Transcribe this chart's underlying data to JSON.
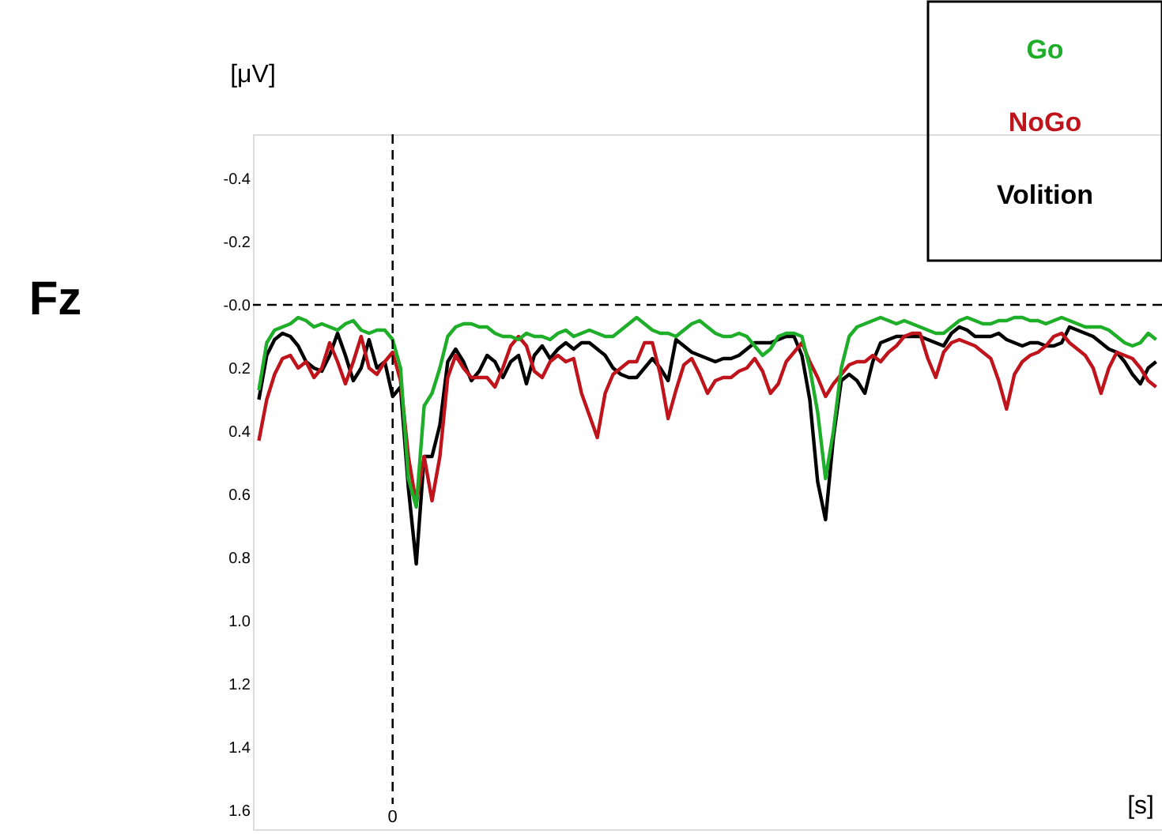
{
  "chart_data": {
    "type": "line",
    "xlabel": "[s]",
    "ylabel": "[μV]",
    "annotations": [
      "Fz"
    ],
    "legend": "top right",
    "grid": false,
    "marker": "none",
    "line_style": "solid",
    "categories": [
      null,
      null,
      null,
      null,
      null,
      null,
      null,
      null,
      null,
      null,
      null,
      null,
      null,
      null,
      null,
      null,
      null,
      "0",
      null,
      null,
      null,
      null,
      null,
      null,
      null,
      null,
      null,
      null,
      null,
      null,
      null,
      null,
      null,
      null,
      null,
      null,
      null,
      null,
      null,
      null,
      null,
      null,
      null,
      null,
      null,
      null,
      null,
      null,
      null,
      null,
      null,
      null,
      null,
      null,
      null,
      null,
      null,
      null,
      null,
      null,
      null,
      null,
      null,
      null,
      null,
      null,
      null,
      null,
      null,
      null,
      null,
      null,
      null,
      null,
      null,
      null,
      null,
      null,
      null,
      null,
      null,
      null,
      null,
      null,
      null,
      null,
      null,
      null,
      null,
      null,
      null,
      null,
      null,
      null,
      null,
      null,
      null,
      null,
      null,
      null,
      null,
      null,
      null,
      null,
      null,
      null,
      null,
      null,
      null,
      null,
      null,
      null,
      null,
      null,
      null
    ],
    "ylim": [
      1.66,
      -0.54
    ],
    "yticks": [
      -0.4,
      -0.2,
      {
        "value": 0,
        "label": "-0.0"
      },
      0.2,
      0.4,
      0.6,
      0.8,
      {
        "value": 1,
        "label": "1.0"
      },
      1.2,
      1.4,
      1.6
    ],
    "ref_lines": [
      {
        "axis": "y",
        "value": 0,
        "line_style": "dashed",
        "color": "#000000"
      },
      {
        "axis": "x",
        "value": "0",
        "line_style": "dashed",
        "color": "#000000"
      }
    ],
    "series": [
      {
        "name": "Go",
        "color": "#1fae2a",
        "values": [
          0.27,
          0.12,
          0.08,
          0.07,
          0.06,
          0.04,
          0.05,
          0.07,
          0.06,
          0.07,
          0.08,
          0.06,
          0.05,
          0.08,
          0.09,
          0.08,
          0.08,
          0.11,
          0.2,
          0.55,
          0.64,
          0.32,
          0.28,
          0.2,
          0.1,
          0.07,
          0.06,
          0.06,
          0.07,
          0.07,
          0.09,
          0.1,
          0.1,
          0.11,
          0.09,
          0.1,
          0.1,
          0.11,
          0.09,
          0.08,
          0.1,
          0.09,
          0.08,
          0.09,
          0.1,
          0.1,
          0.08,
          0.06,
          0.04,
          0.06,
          0.08,
          0.09,
          0.09,
          0.1,
          0.08,
          0.06,
          0.05,
          0.07,
          0.09,
          0.1,
          0.1,
          0.09,
          0.1,
          0.13,
          0.16,
          0.14,
          0.1,
          0.09,
          0.09,
          0.1,
          0.2,
          0.34,
          0.55,
          0.4,
          0.2,
          0.1,
          0.07,
          0.06,
          0.05,
          0.04,
          0.05,
          0.06,
          0.05,
          0.06,
          0.07,
          0.08,
          0.09,
          0.09,
          0.07,
          0.05,
          0.04,
          0.05,
          0.06,
          0.06,
          0.05,
          0.05,
          0.04,
          0.04,
          0.05,
          0.05,
          0.06,
          0.05,
          0.04,
          0.05,
          0.06,
          0.07,
          0.07,
          0.07,
          0.08,
          0.1,
          0.12,
          0.13,
          0.12,
          0.09,
          0.11
        ]
      },
      {
        "name": "NoGo",
        "color": "#c0141c",
        "values": [
          0.43,
          0.3,
          0.22,
          0.17,
          0.16,
          0.2,
          0.18,
          0.23,
          0.2,
          0.12,
          0.18,
          0.25,
          0.18,
          0.1,
          0.2,
          0.22,
          0.18,
          0.15,
          0.24,
          0.48,
          0.63,
          0.48,
          0.62,
          0.48,
          0.23,
          0.16,
          0.2,
          0.23,
          0.23,
          0.23,
          0.26,
          0.2,
          0.13,
          0.1,
          0.13,
          0.21,
          0.23,
          0.18,
          0.16,
          0.18,
          0.17,
          0.28,
          0.35,
          0.42,
          0.28,
          0.22,
          0.2,
          0.18,
          0.18,
          0.12,
          0.12,
          0.22,
          0.36,
          0.27,
          0.19,
          0.17,
          0.22,
          0.28,
          0.24,
          0.23,
          0.23,
          0.21,
          0.2,
          0.17,
          0.21,
          0.28,
          0.25,
          0.18,
          0.15,
          0.12,
          0.18,
          0.23,
          0.29,
          0.25,
          0.22,
          0.19,
          0.18,
          0.18,
          0.16,
          0.18,
          0.15,
          0.13,
          0.1,
          0.09,
          0.09,
          0.17,
          0.23,
          0.15,
          0.12,
          0.11,
          0.12,
          0.13,
          0.15,
          0.17,
          0.24,
          0.33,
          0.22,
          0.18,
          0.16,
          0.15,
          0.13,
          0.1,
          0.09,
          0.12,
          0.14,
          0.16,
          0.2,
          0.28,
          0.2,
          0.15,
          0.16,
          0.17,
          0.2,
          0.24,
          0.26
        ]
      },
      {
        "name": "Volition",
        "color": "#000000",
        "values": [
          0.3,
          0.16,
          0.11,
          0.09,
          0.1,
          0.13,
          0.18,
          0.2,
          0.21,
          0.16,
          0.09,
          0.16,
          0.24,
          0.2,
          0.11,
          0.2,
          0.18,
          0.29,
          0.26,
          0.58,
          0.82,
          0.48,
          0.48,
          0.38,
          0.18,
          0.14,
          0.18,
          0.24,
          0.21,
          0.16,
          0.18,
          0.23,
          0.18,
          0.16,
          0.25,
          0.16,
          0.13,
          0.17,
          0.14,
          0.12,
          0.14,
          0.12,
          0.12,
          0.14,
          0.16,
          0.2,
          0.22,
          0.23,
          0.23,
          0.2,
          0.17,
          0.2,
          0.24,
          0.11,
          0.13,
          0.15,
          0.16,
          0.17,
          0.18,
          0.17,
          0.17,
          0.16,
          0.14,
          0.12,
          0.12,
          0.12,
          0.11,
          0.1,
          0.1,
          0.16,
          0.3,
          0.56,
          0.68,
          0.42,
          0.24,
          0.22,
          0.24,
          0.28,
          0.18,
          0.12,
          0.11,
          0.1,
          0.1,
          0.1,
          0.1,
          0.11,
          0.12,
          0.13,
          0.09,
          0.07,
          0.08,
          0.1,
          0.1,
          0.1,
          0.09,
          0.11,
          0.12,
          0.13,
          0.12,
          0.12,
          0.13,
          0.13,
          0.12,
          0.07,
          0.08,
          0.09,
          0.1,
          0.12,
          0.14,
          0.15,
          0.18,
          0.22,
          0.25,
          0.2,
          0.18
        ]
      }
    ]
  }
}
